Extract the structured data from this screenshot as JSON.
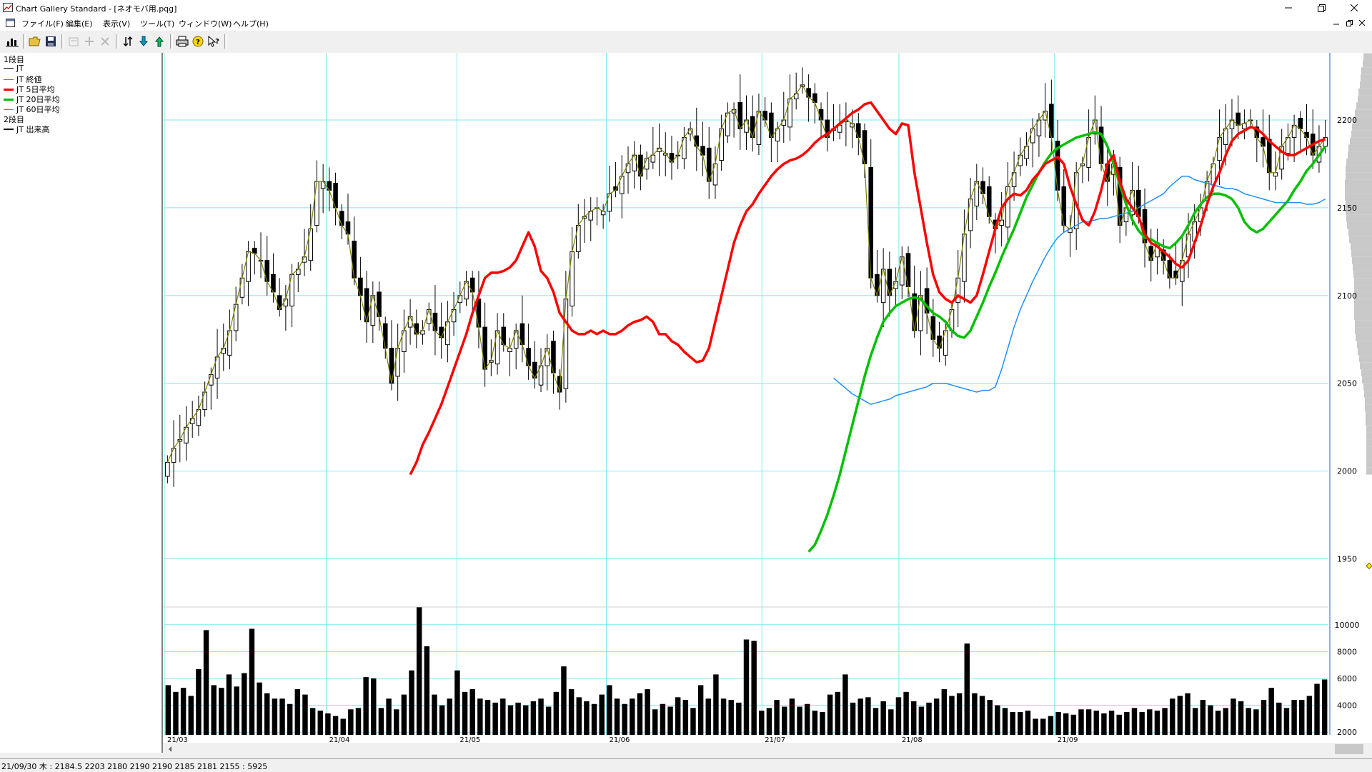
{
  "window": {
    "title": "Chart Gallery Standard - [ネオモバ用.pqg]"
  },
  "menu": [
    "ファイル(F)",
    "編集(E)",
    "表示(V)",
    "ツール(T)",
    "ウィンドウ(W)",
    "ヘルプ(H)"
  ],
  "toolbar": {
    "icons": [
      "chart-icon",
      "open-folder-icon",
      "save-icon",
      "properties-icon",
      "add-icon",
      "delete-icon",
      "sort-icon",
      "download-icon",
      "upload-icon",
      "print-icon",
      "help-icon",
      "context-help-icon"
    ]
  },
  "legend": {
    "section1": "1段目",
    "items1": [
      {
        "label": "JT",
        "color": "#000000"
      },
      {
        "label": "JT 終値",
        "color": "#808000"
      },
      {
        "label": "JT 5日平均",
        "color": "#ff0000"
      },
      {
        "label": "JT 20日平均",
        "color": "#00c000"
      },
      {
        "label": "JT 60日平均",
        "color": "#1e90ff"
      }
    ],
    "section2": "2段目",
    "items2": [
      {
        "label": "JT 出来高",
        "color": "#000000"
      }
    ]
  },
  "status": "21/09/30 木 : 2184.5 2203 2180 2190  2190 2185 2181 2155 : 5925",
  "chart_data": {
    "type": "candlestick",
    "price_axis": {
      "ticks": [
        1950,
        2000,
        2050,
        2100,
        2150,
        2200
      ],
      "range": [
        1925,
        2235
      ]
    },
    "volume_axis": {
      "ticks": [
        2000,
        4000,
        6000,
        8000,
        10000
      ],
      "range": [
        1800,
        11000
      ]
    },
    "x_labels": [
      "21/03",
      "21/04",
      "21/05",
      "21/06",
      "21/07",
      "21/08",
      "21/09"
    ],
    "x_label_index": [
      0,
      26,
      47,
      71,
      96,
      118,
      143
    ],
    "candles_close": [
      2005,
      2013,
      2018,
      2025,
      2030,
      2035,
      2045,
      2055,
      2065,
      2070,
      2080,
      2095,
      2110,
      2125,
      2124,
      2120,
      2108,
      2102,
      2092,
      2098,
      2112,
      2115,
      2122,
      2138,
      2165,
      2165,
      2160,
      2150,
      2140,
      2135,
      2110,
      2100,
      2085,
      2100,
      2088,
      2070,
      2050,
      2070,
      2080,
      2088,
      2078,
      2080,
      2092,
      2080,
      2076,
      2085,
      2092,
      2100,
      2108,
      2102,
      2082,
      2058,
      2063,
      2080,
      2072,
      2070,
      2080,
      2072,
      2060,
      2053,
      2060,
      2070,
      2056,
      2045,
      2098,
      2125,
      2140,
      2145,
      2148,
      2150,
      2148,
      2158,
      2160,
      2168,
      2175,
      2180,
      2168,
      2178,
      2180,
      2184,
      2181,
      2176,
      2180,
      2190,
      2195,
      2185,
      2180,
      2165,
      2175,
      2195,
      2204,
      2206,
      2195,
      2200,
      2190,
      2205,
      2200,
      2190,
      2195,
      2200,
      2212,
      2215,
      2220,
      2213,
      2210,
      2200,
      2190,
      2195,
      2197,
      2200,
      2198,
      2190,
      2175,
      2110,
      2100,
      2115,
      2100,
      2108,
      2122,
      2105,
      2080,
      2100,
      2090,
      2075,
      2070,
      2080,
      2092,
      2110,
      2135,
      2155,
      2165,
      2158,
      2145,
      2138,
      2143,
      2162,
      2170,
      2180,
      2185,
      2195,
      2200,
      2205,
      2190,
      2160,
      2140,
      2138,
      2170,
      2175,
      2190,
      2200,
      2175,
      2165,
      2175,
      2140,
      2150,
      2160,
      2145,
      2130,
      2120,
      2130,
      2120,
      2110,
      2110,
      2120,
      2135,
      2142,
      2150,
      2165,
      2175,
      2190,
      2195,
      2200,
      2197,
      2198,
      2200,
      2190,
      2185,
      2170,
      2170,
      2185,
      2190,
      2197,
      2195,
      2190,
      2180,
      2185,
      2190
    ],
    "ma5": [
      1998,
      2005,
      2015,
      2022,
      2030,
      2038,
      2048,
      2058,
      2068,
      2078,
      2090,
      2100,
      2110,
      2113,
      2113,
      2114,
      2116,
      2120,
      2128,
      2136,
      2128,
      2114,
      2110,
      2102,
      2090,
      2085,
      2080,
      2078,
      2078,
      2080,
      2078,
      2080,
      2078,
      2078,
      2080,
      2083,
      2085,
      2086,
      2088,
      2085,
      2078,
      2078,
      2074,
      2072,
      2068,
      2065,
      2062,
      2063,
      2070,
      2085,
      2100,
      2115,
      2130,
      2140,
      2148,
      2152,
      2158,
      2163,
      2168,
      2172,
      2175,
      2177,
      2178,
      2180,
      2183,
      2187,
      2190,
      2192,
      2195,
      2198,
      2201,
      2204,
      2206,
      2209,
      2210,
      2205,
      2200,
      2195,
      2192,
      2198,
      2197,
      2170,
      2150,
      2130,
      2112,
      2102,
      2098,
      2096,
      2100,
      2098,
      2096,
      2100,
      2112,
      2125,
      2138,
      2150,
      2155,
      2158,
      2157,
      2160,
      2166,
      2170,
      2175,
      2177,
      2179,
      2175,
      2162,
      2152,
      2143,
      2140,
      2148,
      2160,
      2175,
      2180,
      2165,
      2155,
      2150,
      2145,
      2135,
      2130,
      2128,
      2125,
      2122,
      2118,
      2116,
      2120,
      2130,
      2140,
      2152,
      2162,
      2170,
      2180,
      2188,
      2192,
      2194,
      2196,
      2195,
      2192,
      2188,
      2185,
      2182,
      2180,
      2180,
      2182,
      2184,
      2186,
      2188,
      2189
    ],
    "ma20": [
      1954,
      1958,
      1966,
      1975,
      1986,
      1998,
      2012,
      2026,
      2040,
      2054,
      2066,
      2076,
      2085,
      2090,
      2094,
      2096,
      2098,
      2099,
      2098,
      2094,
      2090,
      2088,
      2085,
      2080,
      2077,
      2076,
      2080,
      2088,
      2096,
      2105,
      2113,
      2122,
      2130,
      2138,
      2147,
      2156,
      2163,
      2170,
      2176,
      2181,
      2184,
      2186,
      2188,
      2190,
      2191,
      2192,
      2193,
      2192,
      2185,
      2175,
      2163,
      2152,
      2143,
      2137,
      2133,
      2132,
      2130,
      2128,
      2127,
      2130,
      2134,
      2140,
      2147,
      2152,
      2156,
      2158,
      2158,
      2157,
      2155,
      2150,
      2142,
      2138,
      2136,
      2138,
      2142,
      2146,
      2150,
      2154,
      2160,
      2165,
      2171,
      2175,
      2180,
      2185
    ],
    "ma60": [
      2053,
      2050,
      2047,
      2044,
      2042,
      2040,
      2038,
      2039,
      2040,
      2041,
      2043,
      2044,
      2045,
      2046,
      2047,
      2048,
      2050,
      2050,
      2050,
      2049,
      2048,
      2047,
      2046,
      2045,
      2046,
      2046,
      2048,
      2058,
      2070,
      2082,
      2092,
      2100,
      2108,
      2115,
      2122,
      2128,
      2133,
      2136,
      2138,
      2140,
      2142,
      2142,
      2143,
      2144,
      2144,
      2145,
      2146,
      2147,
      2148,
      2150,
      2152,
      2154,
      2156,
      2158,
      2162,
      2165,
      2168,
      2168,
      2166,
      2165,
      2164,
      2163,
      2162,
      2161,
      2161,
      2160,
      2158,
      2157,
      2156,
      2155,
      2154,
      2153,
      2153,
      2153,
      2153,
      2153,
      2152,
      2152,
      2153,
      2155
    ],
    "volume": [
      5500,
      5000,
      5300,
      4700,
      6700,
      9600,
      5500,
      5300,
      6300,
      5400,
      6400,
      9700,
      5700,
      4900,
      4500,
      4500,
      4100,
      5200,
      4800,
      3800,
      3600,
      3400,
      3200,
      3000,
      3700,
      3800,
      6100,
      6000,
      3800,
      4500,
      3700,
      4800,
      6600,
      11300,
      8400,
      4800,
      4000,
      4500,
      6600,
      5000,
      5200,
      4500,
      4400,
      4200,
      4500,
      4000,
      4200,
      4000,
      4300,
      4500,
      3900,
      5000,
      6900,
      5200,
      4600,
      4300,
      4100,
      4800,
      5500,
      4500,
      4100,
      4500,
      4900,
      5200,
      3700,
      4100,
      3900,
      4600,
      4400,
      3800,
      5500,
      4500,
      6300,
      4500,
      4400,
      4200,
      8900,
      8800,
      3600,
      3800,
      4400,
      3900,
      4500,
      3900,
      4100,
      3600,
      3500,
      4800,
      5000,
      6300,
      4200,
      4500,
      4600,
      3800,
      4300,
      3700,
      4600,
      5000,
      4300,
      3900,
      4200,
      4500,
      5200,
      4700,
      4900,
      8600,
      4900,
      4700,
      4400,
      4000,
      3800,
      3500,
      3500,
      3600,
      3000,
      3000,
      3200,
      3500,
      3400,
      3300,
      3700,
      3700,
      3600,
      3400,
      3600,
      3300,
      3500,
      3800,
      3500,
      3700,
      3600,
      3800,
      4500,
      4700,
      4900,
      3800,
      4400,
      4000,
      3600,
      3800,
      4500,
      4300,
      3800,
      3700,
      4400,
      5300,
      4200,
      3800,
      4400,
      4400,
      4700,
      5600,
      5925
    ]
  }
}
